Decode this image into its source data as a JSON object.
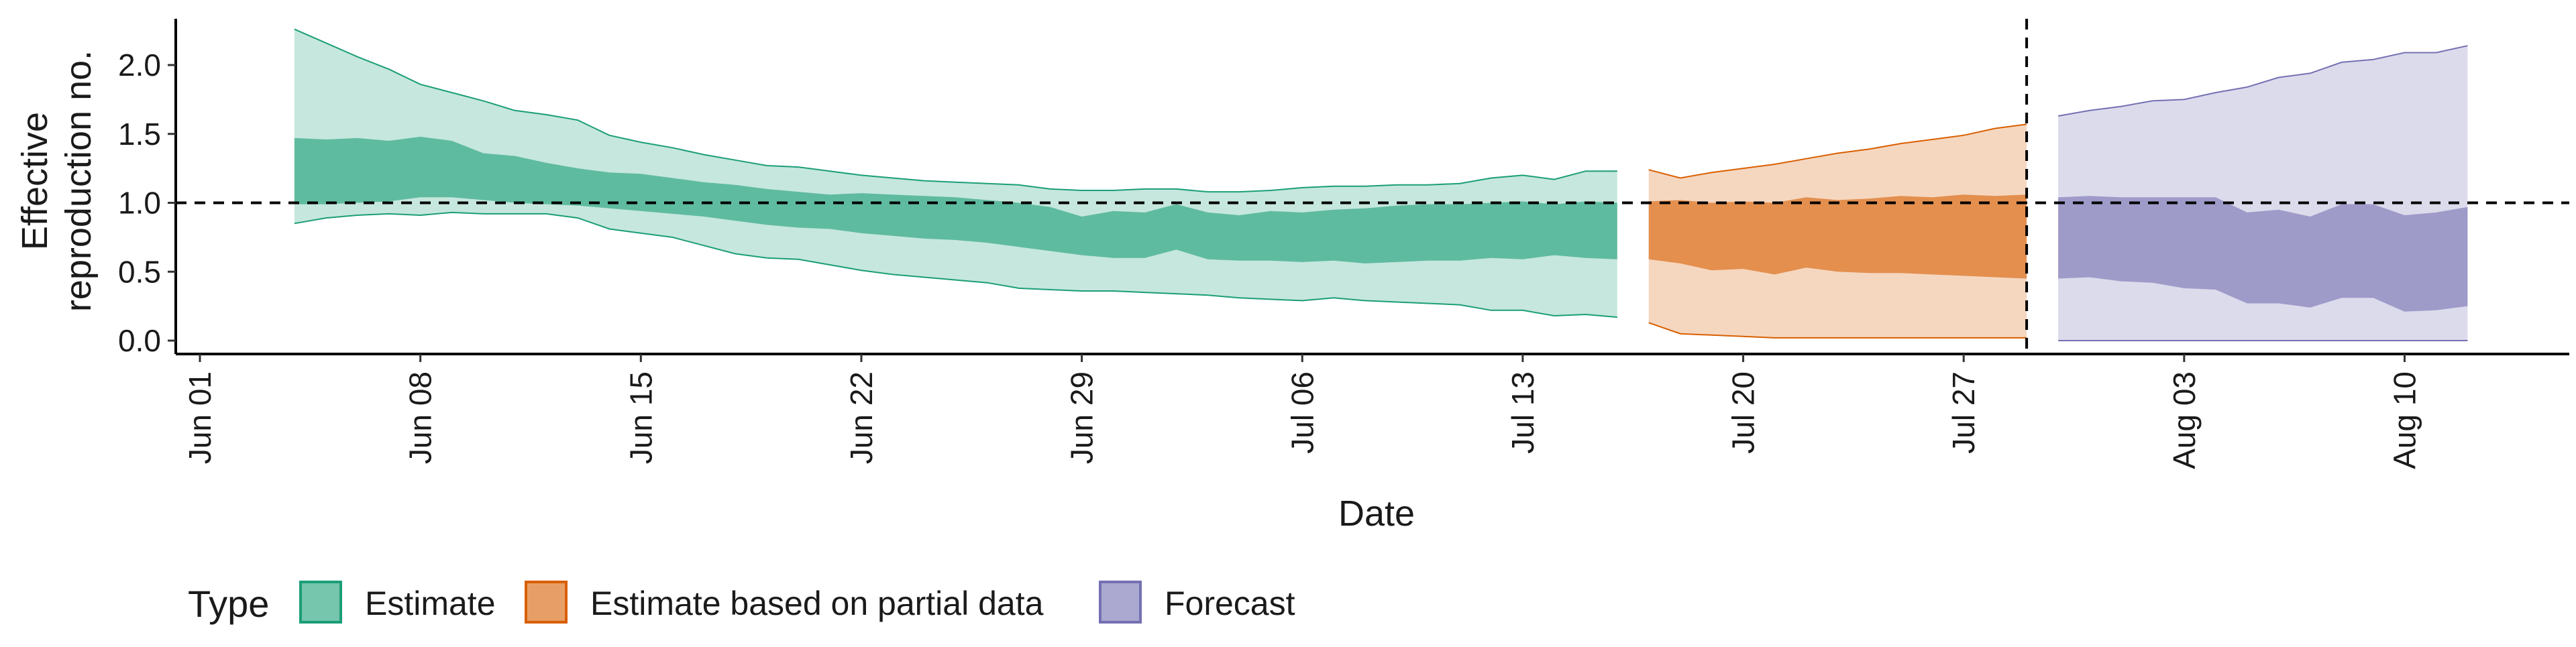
{
  "chart_data": {
    "type": "area",
    "xlabel": "Date",
    "ylabel": [
      "Effective",
      "reproduction no."
    ],
    "ylim": [
      -0.05,
      2.4
    ],
    "yticks": [
      0.0,
      0.5,
      1.0,
      1.5,
      2.0
    ],
    "ytick_labels": [
      "0.0",
      "0.5",
      "1.0",
      "1.5",
      "2.0"
    ],
    "x_start_date": "2020-06-01",
    "x_end_date": "2020-08-19",
    "xticks": [
      "2020-06-01",
      "2020-06-08",
      "2020-06-15",
      "2020-06-22",
      "2020-06-29",
      "2020-07-06",
      "2020-07-13",
      "2020-07-20",
      "2020-07-27",
      "2020-08-03",
      "2020-08-10"
    ],
    "xtick_labels": [
      "Jun 01",
      "Jun 08",
      "Jun 15",
      "Jun 22",
      "Jun 29",
      "Jul 06",
      "Jul 13",
      "Jul 20",
      "Jul 27",
      "Aug 03",
      "Aug 10"
    ],
    "reference_hline": 1.0,
    "reference_vline": "2020-07-29",
    "grid": false,
    "legend": {
      "title": "Type",
      "position": "bottom",
      "entries": [
        "Estimate",
        "Estimate based on partial data",
        "Forecast"
      ]
    },
    "series": [
      {
        "name": "Estimate",
        "fill": "#1B9E77",
        "dates": [
          "2020-06-04",
          "2020-06-05",
          "2020-06-06",
          "2020-06-07",
          "2020-06-08",
          "2020-06-09",
          "2020-06-10",
          "2020-06-11",
          "2020-06-12",
          "2020-06-13",
          "2020-06-14",
          "2020-06-15",
          "2020-06-16",
          "2020-06-17",
          "2020-06-18",
          "2020-06-19",
          "2020-06-20",
          "2020-06-21",
          "2020-06-22",
          "2020-06-23",
          "2020-06-24",
          "2020-06-25",
          "2020-06-26",
          "2020-06-27",
          "2020-06-28",
          "2020-06-29",
          "2020-06-30",
          "2020-07-01",
          "2020-07-02",
          "2020-07-03",
          "2020-07-04",
          "2020-07-05",
          "2020-07-06",
          "2020-07-07",
          "2020-07-08",
          "2020-07-09",
          "2020-07-10",
          "2020-07-11",
          "2020-07-12",
          "2020-07-13",
          "2020-07-14",
          "2020-07-15",
          "2020-07-16"
        ],
        "lower90": [
          0.85,
          0.89,
          0.91,
          0.92,
          0.91,
          0.93,
          0.92,
          0.92,
          0.92,
          0.89,
          0.81,
          0.78,
          0.75,
          0.69,
          0.63,
          0.6,
          0.59,
          0.55,
          0.51,
          0.48,
          0.46,
          0.44,
          0.42,
          0.38,
          0.37,
          0.36,
          0.36,
          0.35,
          0.34,
          0.33,
          0.31,
          0.3,
          0.29,
          0.31,
          0.29,
          0.28,
          0.27,
          0.26,
          0.22,
          0.22,
          0.18,
          0.19,
          0.17
        ],
        "lower50": [
          0.99,
          0.99,
          1.0,
          1.01,
          1.04,
          1.04,
          1.02,
          1.0,
          0.99,
          0.98,
          0.96,
          0.94,
          0.92,
          0.9,
          0.87,
          0.84,
          0.82,
          0.81,
          0.78,
          0.76,
          0.74,
          0.73,
          0.71,
          0.68,
          0.65,
          0.62,
          0.6,
          0.6,
          0.66,
          0.59,
          0.58,
          0.58,
          0.57,
          0.58,
          0.56,
          0.57,
          0.58,
          0.58,
          0.6,
          0.59,
          0.62,
          0.6,
          0.59
        ],
        "upper50": [
          1.47,
          1.46,
          1.47,
          1.45,
          1.48,
          1.45,
          1.36,
          1.34,
          1.29,
          1.25,
          1.22,
          1.21,
          1.18,
          1.15,
          1.13,
          1.1,
          1.08,
          1.06,
          1.07,
          1.06,
          1.05,
          1.04,
          1.02,
          1.0,
          0.97,
          0.9,
          0.94,
          0.93,
          0.99,
          0.93,
          0.91,
          0.94,
          0.93,
          0.95,
          0.96,
          0.98,
          0.99,
          0.99,
          1.0,
          1.01,
          0.99,
          1.01,
          1.0
        ],
        "upper90": [
          2.26,
          2.16,
          2.06,
          1.97,
          1.86,
          1.8,
          1.74,
          1.67,
          1.64,
          1.6,
          1.49,
          1.44,
          1.4,
          1.35,
          1.31,
          1.27,
          1.26,
          1.23,
          1.2,
          1.18,
          1.16,
          1.15,
          1.14,
          1.13,
          1.1,
          1.09,
          1.09,
          1.1,
          1.1,
          1.08,
          1.08,
          1.09,
          1.11,
          1.12,
          1.12,
          1.13,
          1.13,
          1.14,
          1.18,
          1.2,
          1.17,
          1.23,
          1.23
        ]
      },
      {
        "name": "Estimate based on partial data",
        "fill": "#D95F02",
        "dates": [
          "2020-07-17",
          "2020-07-18",
          "2020-07-19",
          "2020-07-20",
          "2020-07-21",
          "2020-07-22",
          "2020-07-23",
          "2020-07-24",
          "2020-07-25",
          "2020-07-26",
          "2020-07-27",
          "2020-07-28",
          "2020-07-29"
        ],
        "lower90": [
          0.13,
          0.05,
          0.04,
          0.03,
          0.02,
          0.02,
          0.02,
          0.02,
          0.02,
          0.02,
          0.02,
          0.02,
          0.02
        ],
        "lower50": [
          0.59,
          0.56,
          0.51,
          0.52,
          0.48,
          0.53,
          0.5,
          0.49,
          0.49,
          0.48,
          0.47,
          0.46,
          0.45
        ],
        "upper50": [
          1.01,
          1.02,
          1.0,
          1.01,
          1.0,
          1.04,
          1.02,
          1.03,
          1.05,
          1.04,
          1.06,
          1.05,
          1.06
        ],
        "upper90": [
          1.24,
          1.18,
          1.22,
          1.25,
          1.28,
          1.32,
          1.36,
          1.39,
          1.43,
          1.46,
          1.49,
          1.54,
          1.57
        ]
      },
      {
        "name": "Forecast",
        "fill": "#7570B3",
        "dates": [
          "2020-07-30",
          "2020-07-31",
          "2020-08-01",
          "2020-08-02",
          "2020-08-03",
          "2020-08-04",
          "2020-08-05",
          "2020-08-06",
          "2020-08-07",
          "2020-08-08",
          "2020-08-09",
          "2020-08-10",
          "2020-08-11",
          "2020-08-12"
        ],
        "lower90": [
          0.0,
          0.0,
          0.0,
          0.0,
          0.0,
          0.0,
          0.0,
          0.0,
          0.0,
          0.0,
          0.0,
          0.0,
          0.0,
          0.0
        ],
        "lower50": [
          0.45,
          0.46,
          0.43,
          0.42,
          0.38,
          0.37,
          0.27,
          0.27,
          0.24,
          0.31,
          0.31,
          0.21,
          0.22,
          0.25
        ],
        "upper50": [
          1.04,
          1.05,
          1.04,
          1.04,
          1.04,
          1.04,
          0.93,
          0.95,
          0.9,
          0.99,
          0.99,
          0.91,
          0.93,
          0.97
        ],
        "upper90": [
          1.63,
          1.67,
          1.7,
          1.74,
          1.75,
          1.8,
          1.84,
          1.91,
          1.94,
          2.02,
          2.04,
          2.09,
          2.09,
          2.14
        ]
      }
    ]
  }
}
